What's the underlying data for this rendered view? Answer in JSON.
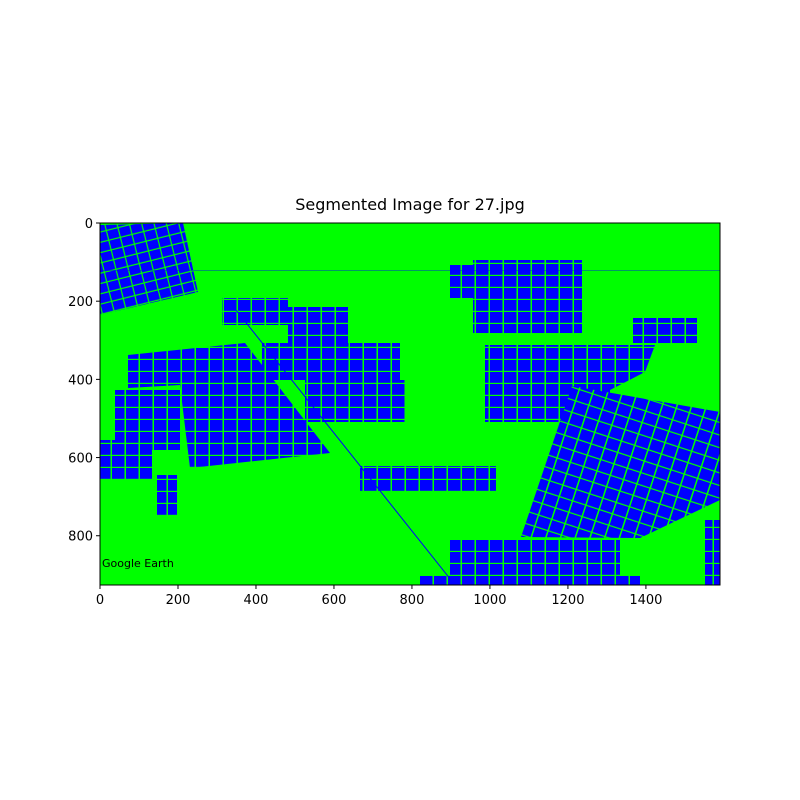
{
  "chart_data": {
    "type": "image",
    "title": "Segmented Image for 27.jpg",
    "xlim": [
      0,
      1590
    ],
    "ylim": [
      926,
      0
    ],
    "xticks": [
      0,
      200,
      400,
      600,
      800,
      1000,
      1200,
      1400
    ],
    "yticks": [
      0,
      200,
      400,
      600,
      800
    ],
    "annotation": "Google Earth",
    "colors": {
      "background": "#00ff00",
      "segment": "#0000ff"
    }
  }
}
